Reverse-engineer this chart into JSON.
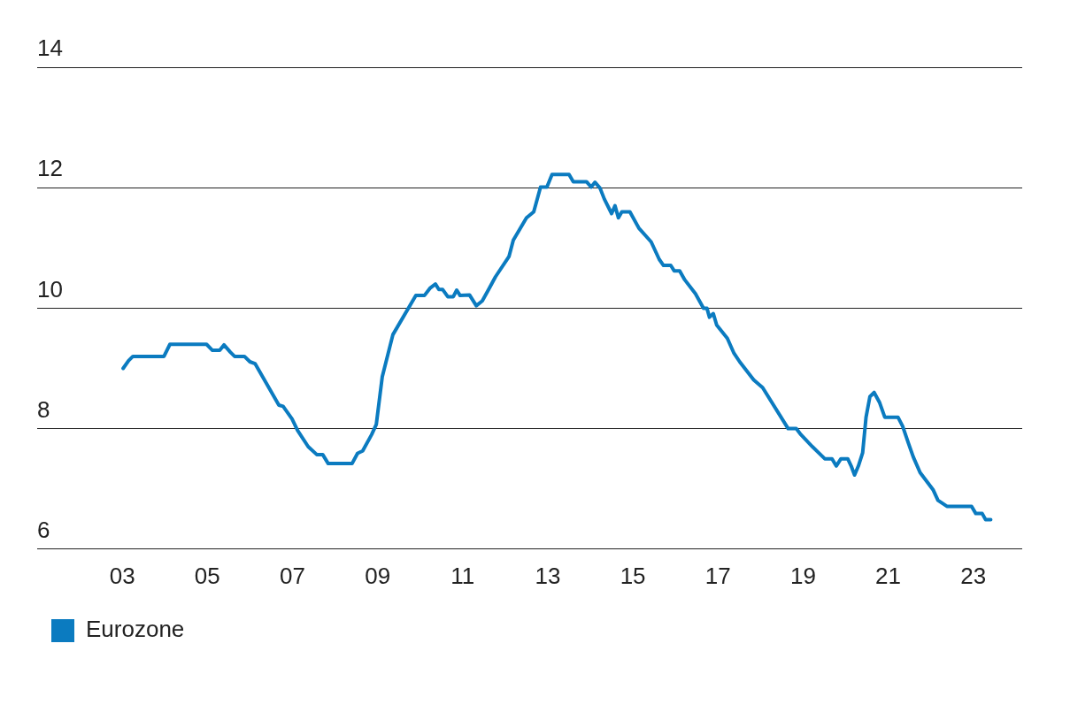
{
  "chart_data": {
    "type": "line",
    "x": [
      2003.02,
      2003.15,
      2003.25,
      2003.98,
      2004.12,
      2004.98,
      2005.12,
      2005.29,
      2005.39,
      2005.54,
      2005.64,
      2005.87,
      2006.0,
      2006.12,
      2006.68,
      2006.78,
      2006.99,
      2007.12,
      2007.37,
      2007.57,
      2007.71,
      2007.84,
      2008.4,
      2008.53,
      2008.65,
      2008.86,
      2008.97,
      2009.11,
      2009.36,
      2009.9,
      2010.1,
      2010.23,
      2010.36,
      2010.44,
      2010.53,
      2010.65,
      2010.78,
      2010.86,
      2010.94,
      2011.16,
      2011.32,
      2011.46,
      2011.61,
      2011.77,
      2012.09,
      2012.19,
      2012.5,
      2012.67,
      2012.83,
      2012.98,
      2013.1,
      2013.5,
      2013.6,
      2013.91,
      2014.02,
      2014.11,
      2014.23,
      2014.33,
      2014.5,
      2014.58,
      2014.66,
      2014.74,
      2014.93,
      2015.14,
      2015.43,
      2015.62,
      2015.72,
      2015.89,
      2015.97,
      2016.1,
      2016.22,
      2016.47,
      2016.66,
      2016.74,
      2016.8,
      2016.89,
      2016.97,
      2017.22,
      2017.37,
      2017.51,
      2017.84,
      2018.05,
      2018.65,
      2018.84,
      2018.95,
      2019.22,
      2019.51,
      2019.68,
      2019.78,
      2019.89,
      2020.05,
      2020.13,
      2020.21,
      2020.3,
      2020.4,
      2020.48,
      2020.57,
      2020.67,
      2020.8,
      2020.92,
      2021.23,
      2021.34,
      2021.48,
      2021.59,
      2021.75,
      2022.06,
      2022.17,
      2022.38,
      2022.96,
      2023.06,
      2023.21,
      2023.29,
      2023.41
    ],
    "series": [
      {
        "name": "Eurozone",
        "color": "#0b7bc0",
        "values": [
          9.0,
          9.13,
          9.2,
          9.2,
          9.4,
          9.4,
          9.3,
          9.3,
          9.39,
          9.27,
          9.2,
          9.2,
          9.11,
          9.08,
          8.39,
          8.37,
          8.16,
          7.97,
          7.7,
          7.57,
          7.57,
          7.42,
          7.42,
          7.59,
          7.63,
          7.9,
          8.07,
          8.86,
          9.56,
          10.21,
          10.21,
          10.33,
          10.4,
          10.31,
          10.31,
          10.19,
          10.19,
          10.3,
          10.21,
          10.22,
          10.04,
          10.12,
          10.31,
          10.52,
          10.86,
          11.13,
          11.5,
          11.6,
          12.01,
          12.01,
          12.22,
          12.22,
          12.1,
          12.1,
          12.01,
          12.09,
          11.99,
          11.81,
          11.57,
          11.7,
          11.5,
          11.6,
          11.6,
          11.33,
          11.1,
          10.81,
          10.71,
          10.71,
          10.62,
          10.62,
          10.47,
          10.24,
          10.0,
          10.0,
          9.85,
          9.91,
          9.72,
          9.5,
          9.26,
          9.11,
          8.81,
          8.68,
          8.0,
          8.0,
          7.9,
          7.7,
          7.5,
          7.5,
          7.38,
          7.5,
          7.5,
          7.38,
          7.23,
          7.38,
          7.6,
          8.19,
          8.53,
          8.6,
          8.43,
          8.19,
          8.19,
          8.04,
          7.75,
          7.53,
          7.27,
          6.98,
          6.81,
          6.71,
          6.71,
          6.59,
          6.59,
          6.49,
          6.49
        ]
      }
    ],
    "xlim": [
      2001,
      2024.15
    ],
    "xticks": [
      {
        "value": 2003,
        "label": "03"
      },
      {
        "value": 2005,
        "label": "05"
      },
      {
        "value": 2007,
        "label": "07"
      },
      {
        "value": 2009,
        "label": "09"
      },
      {
        "value": 2011,
        "label": "11"
      },
      {
        "value": 2013,
        "label": "13"
      },
      {
        "value": 2015,
        "label": "15"
      },
      {
        "value": 2017,
        "label": "17"
      },
      {
        "value": 2019,
        "label": "19"
      },
      {
        "value": 2021,
        "label": "21"
      },
      {
        "value": 2023,
        "label": "23"
      }
    ],
    "ylim": [
      6,
      14
    ],
    "yticks": [
      6,
      8,
      10,
      12,
      14
    ],
    "grid": "y",
    "legend": "bottom left",
    "marker": "none",
    "line_style": "solid"
  }
}
